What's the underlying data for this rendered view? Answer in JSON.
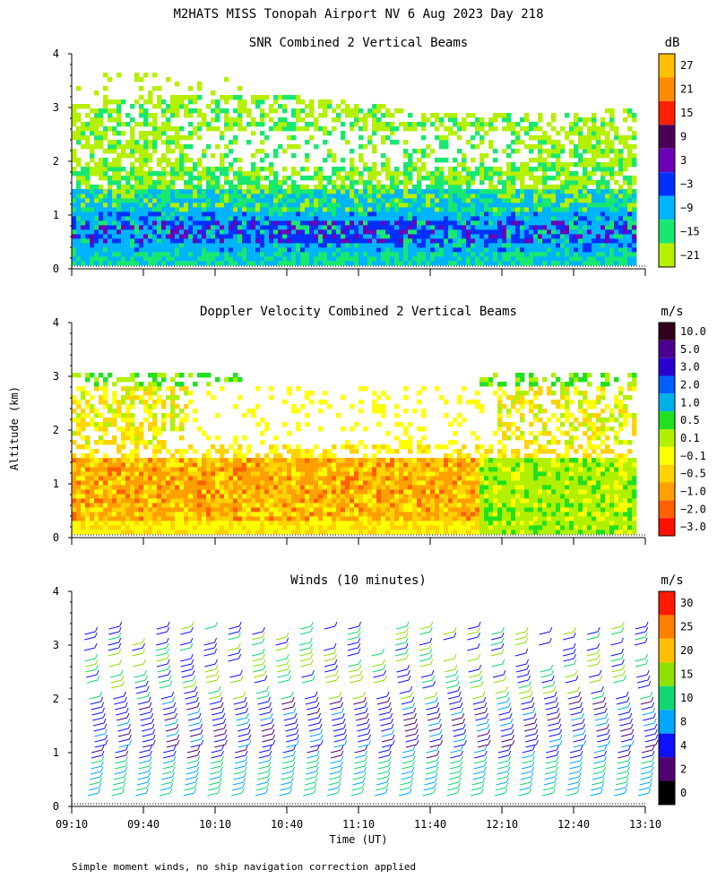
{
  "page": {
    "title": "M2HATS MISS Tonopah Airport NV   6 Aug 2023 Day 218",
    "ylabel": "Altitude (km)",
    "xlabel": "Time (UT)",
    "footnote": "Simple moment winds, no ship navigation correction applied"
  },
  "chart_data": [
    {
      "type": "heatmap",
      "title": "SNR Combined 2 Vertical Beams",
      "xlabel": "Time (UT)",
      "ylabel": "Altitude (km)",
      "x_range": [
        "09:10",
        "13:10"
      ],
      "ylim": [
        0,
        4
      ],
      "yticks": [
        "0",
        "1",
        "2",
        "3",
        "4"
      ],
      "colorbar": {
        "unit": "dB",
        "labels": [
          "27",
          "21",
          "15",
          "9",
          "3",
          "−3",
          "−9",
          "−15",
          "−21"
        ],
        "colors": [
          "#ffc000",
          "#ff8c00",
          "#ff2000",
          "#4b0058",
          "#6a00b8",
          "#0030ff",
          "#00b4ff",
          "#18e870",
          "#b4f000"
        ]
      }
    },
    {
      "type": "heatmap",
      "title": "Doppler Velocity Combined 2 Vertical Beams",
      "xlabel": "Time (UT)",
      "ylabel": "Altitude (km)",
      "x_range": [
        "09:10",
        "13:10"
      ],
      "ylim": [
        0,
        4
      ],
      "yticks": [
        "0",
        "1",
        "2",
        "3",
        "4"
      ],
      "colorbar": {
        "unit": "m/s",
        "labels": [
          "10.0",
          "5.0",
          "3.0",
          "2.0",
          "1.0",
          "0.5",
          "0.1",
          "−0.1",
          "−0.5",
          "−1.0",
          "−2.0",
          "−3.0"
        ],
        "colors": [
          "#30001c",
          "#4b0090",
          "#2a00d0",
          "#0060ff",
          "#00b0e8",
          "#20e020",
          "#b0f000",
          "#ffff00",
          "#ffd200",
          "#ffa000",
          "#ff6000",
          "#ff1000"
        ]
      }
    },
    {
      "type": "wind_barbs",
      "title": "Winds (10 minutes)",
      "xlabel": "Time (UT)",
      "ylabel": "Altitude (km)",
      "x_range": [
        "09:10",
        "13:10"
      ],
      "ylim": [
        0,
        4
      ],
      "yticks": [
        "0",
        "1",
        "2",
        "3",
        "4"
      ],
      "xticks": [
        "09:10",
        "09:40",
        "10:10",
        "10:40",
        "11:10",
        "11:40",
        "12:10",
        "12:40",
        "13:10"
      ],
      "colorbar": {
        "unit": "m/s",
        "labels": [
          "30",
          "25",
          "20",
          "15",
          "10",
          "8",
          "4",
          "2",
          "0"
        ],
        "colors": [
          "#ff1a00",
          "#ff8000",
          "#ffc000",
          "#90e000",
          "#10d870",
          "#00a8ff",
          "#1010ff",
          "#500070",
          "#000000"
        ]
      }
    }
  ]
}
